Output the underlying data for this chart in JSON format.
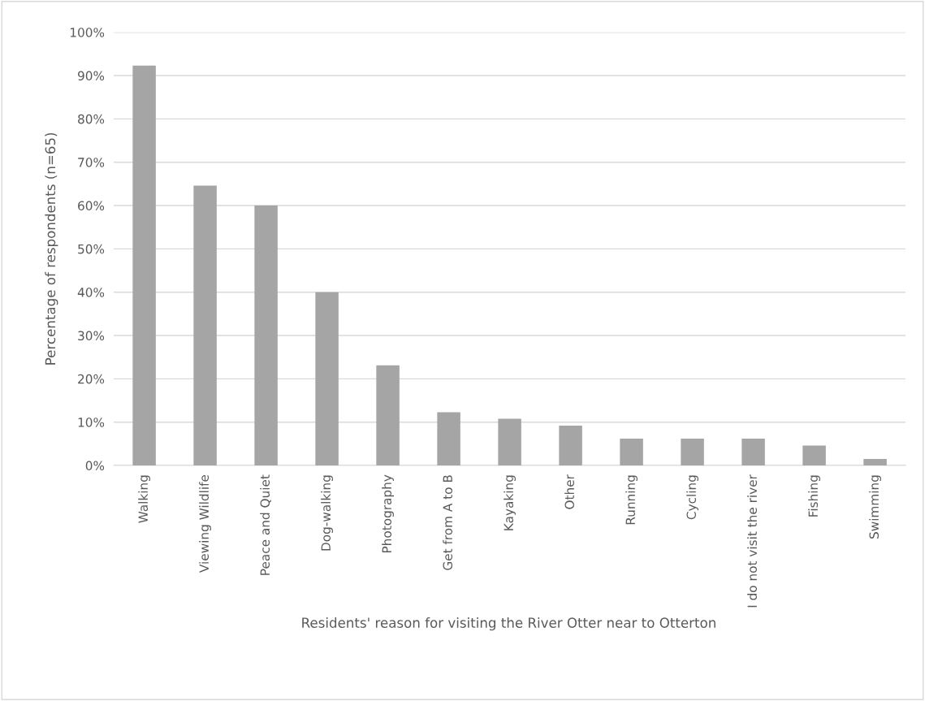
{
  "chart_data": {
    "type": "bar",
    "xlabel": "Residents' reason for visiting the River Otter near to Otterton",
    "ylabel": "Percentage of respondents (n=65)",
    "categories": [
      "Walking",
      "Viewing Wildlife",
      "Peace and Quiet",
      "Dog-walking",
      "Photography",
      "Get from A to B",
      "Kayaking",
      "Other",
      "Running",
      "Cycling",
      "I do not visit the river",
      "Fishing",
      "Swimming"
    ],
    "values": [
      92.3,
      64.6,
      60.0,
      40.0,
      23.1,
      12.3,
      10.8,
      9.2,
      6.2,
      6.2,
      6.2,
      4.6,
      1.5
    ],
    "color": "#a5a5a5",
    "ylim": [
      0,
      100
    ],
    "yticks": [
      {
        "value": 0,
        "label": "0%"
      },
      {
        "value": 10,
        "label": "10%"
      },
      {
        "value": 20,
        "label": "20%"
      },
      {
        "value": 30,
        "label": "30%"
      },
      {
        "value": 40,
        "label": "40%"
      },
      {
        "value": 50,
        "label": "50%"
      },
      {
        "value": 60,
        "label": "60%"
      },
      {
        "value": 70,
        "label": "70%"
      },
      {
        "value": 80,
        "label": "80%"
      },
      {
        "value": 90,
        "label": "90%"
      },
      {
        "value": 100,
        "label": "100%"
      }
    ],
    "grid": "y"
  }
}
